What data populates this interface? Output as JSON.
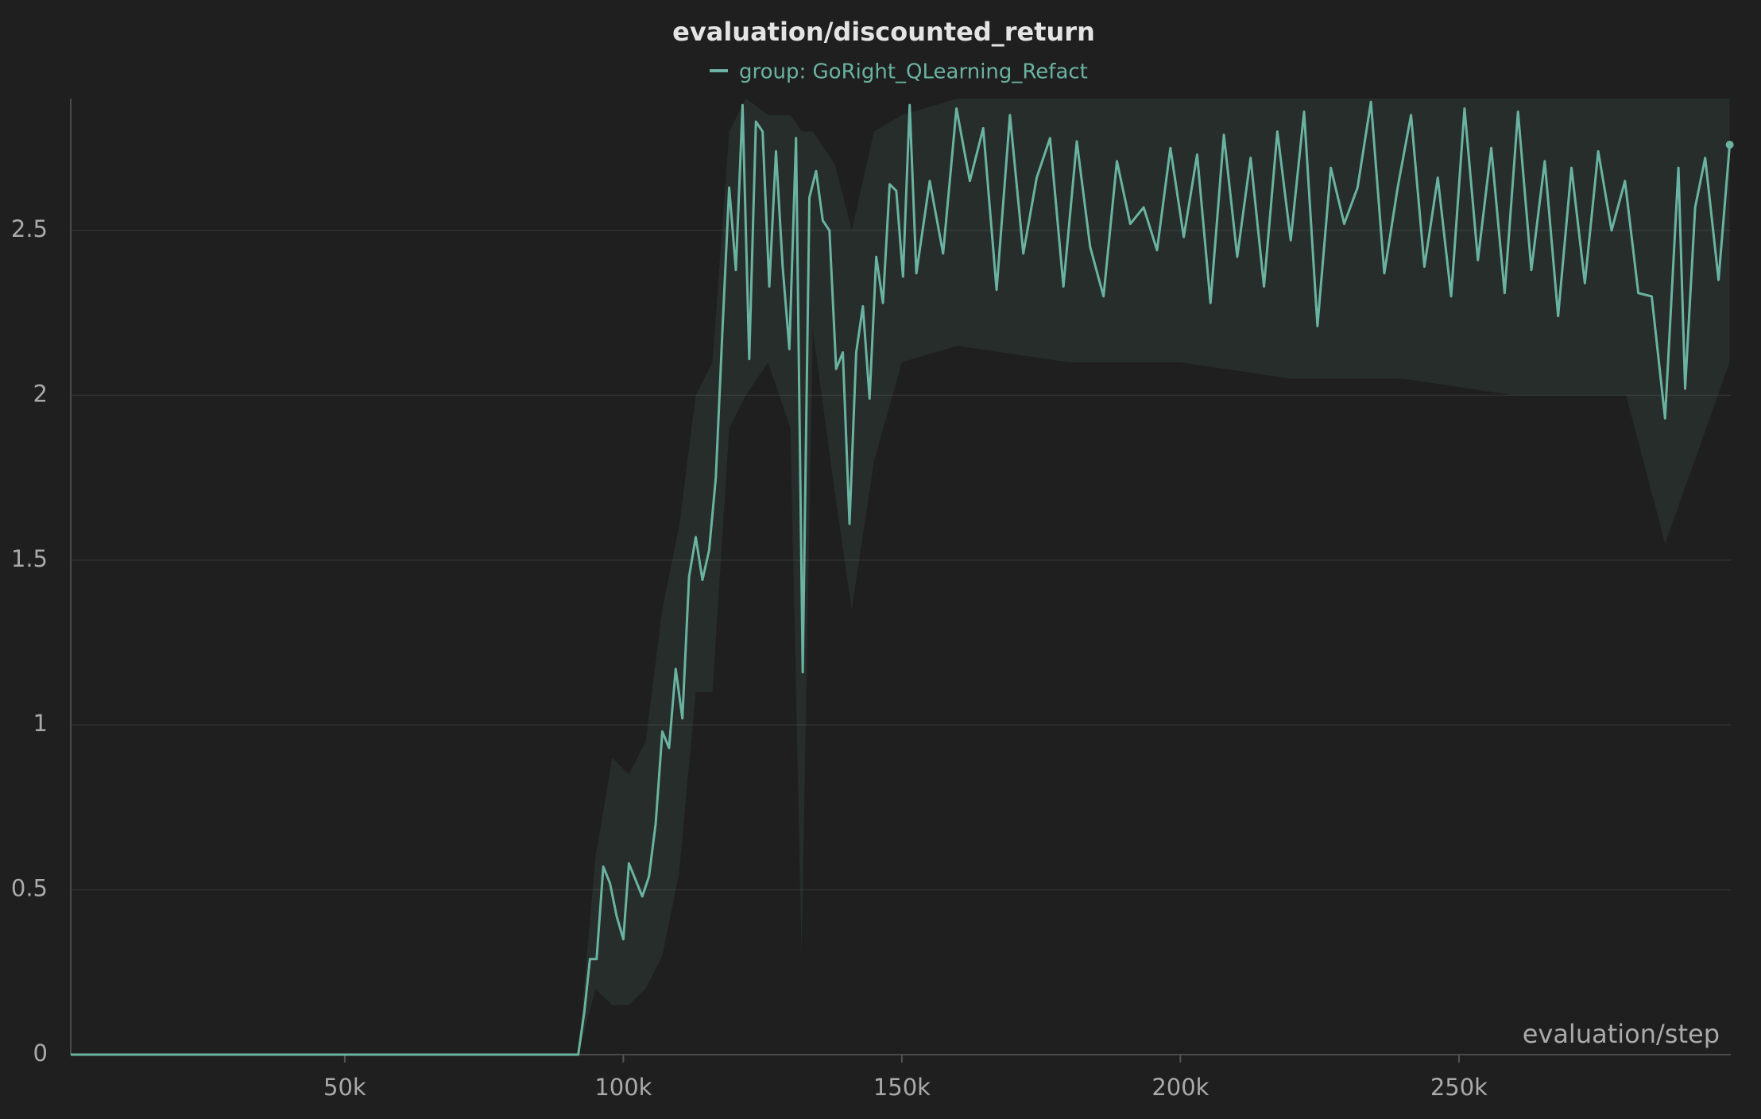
{
  "chart_data": {
    "type": "line",
    "title": "evaluation/discounted_return",
    "x_label": "evaluation/step",
    "xlim": [
      800,
      298800
    ],
    "ylim": [
      0,
      2.9
    ],
    "xticks": [
      {
        "value": 50000,
        "label": "50k"
      },
      {
        "value": 100000,
        "label": "100k"
      },
      {
        "value": 150000,
        "label": "150k"
      },
      {
        "value": 200000,
        "label": "200k"
      },
      {
        "value": 250000,
        "label": "250k"
      }
    ],
    "yticks": [
      0,
      0.5,
      1,
      1.5,
      2,
      2.5
    ],
    "grid": true,
    "x": [
      800,
      91900,
      93000,
      94000,
      95200,
      96400,
      97600,
      98800,
      100000,
      101000,
      102200,
      103400,
      104600,
      105800,
      107000,
      108200,
      109400,
      110600,
      111800,
      113000,
      114200,
      115400,
      116600,
      117800,
      119000,
      120200,
      121400,
      122600,
      123800,
      125000,
      126200,
      127400,
      128600,
      129800,
      131000,
      132200,
      133400,
      134600,
      135800,
      137000,
      138200,
      139400,
      140600,
      141800,
      143000,
      144200,
      145400,
      146600,
      147800,
      149000,
      150200,
      151400,
      152600,
      155000,
      157400,
      159800,
      162200,
      164600,
      167000,
      169400,
      171800,
      174200,
      176600,
      179000,
      181400,
      183800,
      186200,
      188600,
      191000,
      193400,
      195800,
      198200,
      200600,
      203000,
      205400,
      207800,
      210200,
      212600,
      215000,
      217400,
      219800,
      222200,
      224600,
      227000,
      229400,
      231800,
      234200,
      236600,
      239000,
      241400,
      243800,
      246200,
      248600,
      251000,
      253400,
      255800,
      258200,
      260600,
      263000,
      265400,
      267800,
      270200,
      272600,
      275000,
      277400,
      279800,
      282200,
      284600,
      287000,
      289400,
      290600,
      292400,
      294200,
      296600,
      298600
    ],
    "series": [
      {
        "name": "group: GoRight_QLearning_Refact",
        "color": "#6ab3a1",
        "values": [
          0,
          0,
          0.13,
          0.29,
          0.29,
          0.57,
          0.52,
          0.42,
          0.35,
          0.58,
          0.53,
          0.48,
          0.54,
          0.7,
          0.98,
          0.93,
          1.17,
          1.02,
          1.45,
          1.57,
          1.44,
          1.53,
          1.75,
          2.2,
          2.63,
          2.38,
          2.88,
          2.11,
          2.83,
          2.8,
          2.33,
          2.74,
          2.39,
          2.14,
          2.78,
          1.16,
          2.6,
          2.68,
          2.53,
          2.5,
          2.08,
          2.13,
          1.61,
          2.13,
          2.27,
          1.99,
          2.42,
          2.28,
          2.64,
          2.62,
          2.36,
          2.88,
          2.37,
          2.65,
          2.43,
          2.87,
          2.65,
          2.81,
          2.32,
          2.85,
          2.43,
          2.66,
          2.78,
          2.33,
          2.77,
          2.45,
          2.3,
          2.71,
          2.52,
          2.57,
          2.44,
          2.75,
          2.48,
          2.73,
          2.28,
          2.79,
          2.42,
          2.72,
          2.33,
          2.8,
          2.47,
          2.86,
          2.21,
          2.69,
          2.52,
          2.63,
          2.89,
          2.37,
          2.63,
          2.85,
          2.39,
          2.66,
          2.3,
          2.87,
          2.41,
          2.75,
          2.31,
          2.86,
          2.38,
          2.71,
          2.24,
          2.69,
          2.34,
          2.74,
          2.5,
          2.65,
          2.31,
          2.3,
          1.93,
          2.69,
          2.02,
          2.57,
          2.72,
          2.35,
          2.76
        ]
      }
    ],
    "band": {
      "x": [
        91900,
        95000,
        98000,
        101000,
        104000,
        107000,
        110000,
        113000,
        116000,
        119000,
        122000,
        126000,
        130000,
        132000,
        134000,
        138000,
        141000,
        145000,
        150000,
        160000,
        180000,
        200000,
        220000,
        240000,
        260000,
        280000,
        287000,
        298600
      ],
      "lower": [
        0,
        0.2,
        0.15,
        0.15,
        0.2,
        0.3,
        0.55,
        1.1,
        1.1,
        1.9,
        2.0,
        2.1,
        1.9,
        0.3,
        2.2,
        1.7,
        1.35,
        1.8,
        2.1,
        2.15,
        2.1,
        2.1,
        2.05,
        2.05,
        2.0,
        2.0,
        1.55,
        2.1
      ],
      "upper": [
        0,
        0.6,
        0.9,
        0.85,
        0.95,
        1.35,
        1.6,
        2.0,
        2.1,
        2.8,
        2.9,
        2.85,
        2.85,
        2.8,
        2.8,
        2.7,
        2.5,
        2.8,
        2.85,
        2.9,
        2.9,
        2.9,
        2.9,
        2.9,
        2.9,
        2.9,
        2.9,
        2.9
      ]
    }
  }
}
